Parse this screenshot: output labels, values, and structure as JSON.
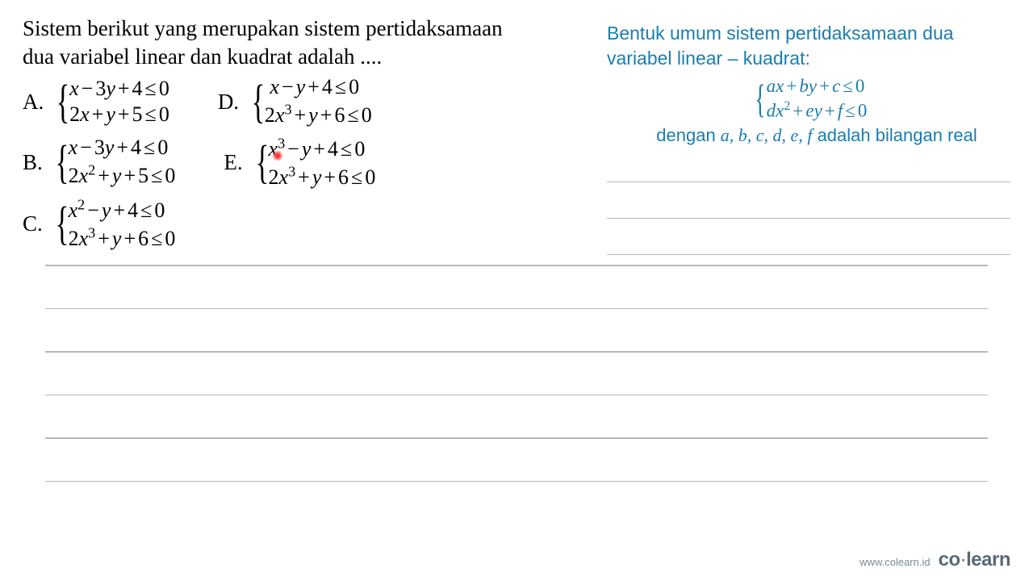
{
  "question": {
    "line1": "Sistem berikut yang merupakan sistem pertidaksamaan",
    "line2": "dua variabel linear dan kuadrat adalah ...."
  },
  "options": {
    "A": {
      "letter": "A.",
      "eq1_html": "<span class='math'>x<span class='op'>−</span><span class='num'>3</span>y<span class='op'>+</span><span class='num'>4</span><span class='op'>≤</span><span class='num'>0</span></span>",
      "eq2_html": "<span class='math'><span class='num'>2</span>x<span class='op'>+</span>y<span class='op'>+</span><span class='num'>5</span><span class='op'>≤</span><span class='num'>0</span></span>"
    },
    "B": {
      "letter": "B.",
      "eq1_html": "<span class='math'>x<span class='op'>−</span><span class='num'>3</span>y<span class='op'>+</span><span class='num'>4</span><span class='op'>≤</span><span class='num'>0</span></span>",
      "eq2_html": "<span class='math'><span class='num'>2</span>x<sup>2</sup><span class='op'>+</span>y<span class='op'>+</span><span class='num'>5</span><span class='op'>≤</span><span class='num'>0</span></span>"
    },
    "C": {
      "letter": "C.",
      "eq1_html": "<span class='math'>x<sup>2</sup><span class='op'>−</span>y<span class='op'>+</span><span class='num'>4</span><span class='op'>≤</span><span class='num'>0</span></span>",
      "eq2_html": "<span class='math'><span class='num'>2</span>x<sup>3</sup><span class='op'>+</span>y<span class='op'>+</span><span class='num'>6</span><span class='op'>≤</span><span class='num'>0</span></span>"
    },
    "D": {
      "letter": "D.",
      "eq1_html": "<span class='math'>&nbsp;x<span class='op'>−</span>y<span class='op'>+</span><span class='num'>4</span><span class='op'>≤</span><span class='num'>0</span></span>",
      "eq2_html": "<span class='math'><span class='num'>2</span>x<sup>3</sup><span class='op'>+</span>y<span class='op'>+</span><span class='num'>6</span><span class='op'>≤</span><span class='num'>0</span></span>"
    },
    "E": {
      "letter": "E.",
      "eq1_html": "<span class='math'>x<sup>3</sup><span class='op'>−</span>y<span class='op'>+</span><span class='num'>4</span><span class='op'>≤</span><span class='num'>0</span></span>",
      "eq2_html": "<span class='math'><span class='num'>2</span>x<sup>3</sup><span class='op'>+</span>y<span class='op'>+</span><span class='num'>6</span><span class='op'>≤</span><span class='num'>0</span></span>"
    }
  },
  "hint": {
    "title_l1": "Bentuk umum sistem pertidaksamaan dua",
    "title_l2": "variabel linear – kuadrat:",
    "sys1_html": "ax<span class='op'>+</span>by<span class='op'>+</span>c<span class='op'>≤</span><span class='num'>0</span>",
    "sys2_html": "dx<sup>2</sup><span class='op'>+</span>ey<span class='op'>+</span>f<span class='op'>≤</span><span class='num'>0</span>",
    "note_pre": "dengan ",
    "note_vars": "a, b, c, d, e, f",
    "note_post": " adalah bilangan real"
  },
  "footer": {
    "url": "www.colearn.id",
    "brand_1": "co",
    "brand_dot": "·",
    "brand_2": "learn"
  },
  "colors": {
    "hint_text": "#1a7db0",
    "line": "#b8b8b8",
    "question_text": "#000000",
    "background": "#ffffff"
  }
}
